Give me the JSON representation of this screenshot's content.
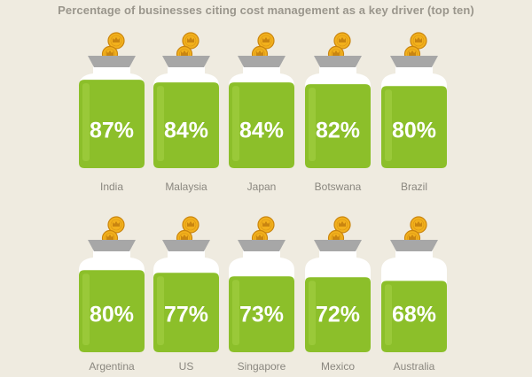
{
  "chart_data": {
    "type": "bar",
    "title": "Percentage of businesses citing cost management  as a key driver (top ten)",
    "categories": [
      "India",
      "Malaysia",
      "Japan",
      "Botswana",
      "Brazil",
      "Argentina",
      "US",
      "Singapore",
      "Mexico",
      "Australia"
    ],
    "values": [
      87,
      84,
      84,
      82,
      80,
      80,
      77,
      73,
      72,
      68
    ],
    "value_suffix": "%",
    "ylim": [
      0,
      100
    ],
    "grid": false,
    "legend": "none"
  },
  "colors": {
    "background": "#efebe0",
    "jar_fill": "#8cbf2a",
    "jar_fill_light": "#a3d045",
    "jar_glass": "#ffffff",
    "lid": "#a7a7a7",
    "coin": "#f2b01c",
    "coin_edge": "#c98510",
    "text_label": "#8a877f",
    "value_text": "#ffffff"
  },
  "icons": [
    "coin-icon",
    "jar-icon",
    "crown-icon"
  ]
}
